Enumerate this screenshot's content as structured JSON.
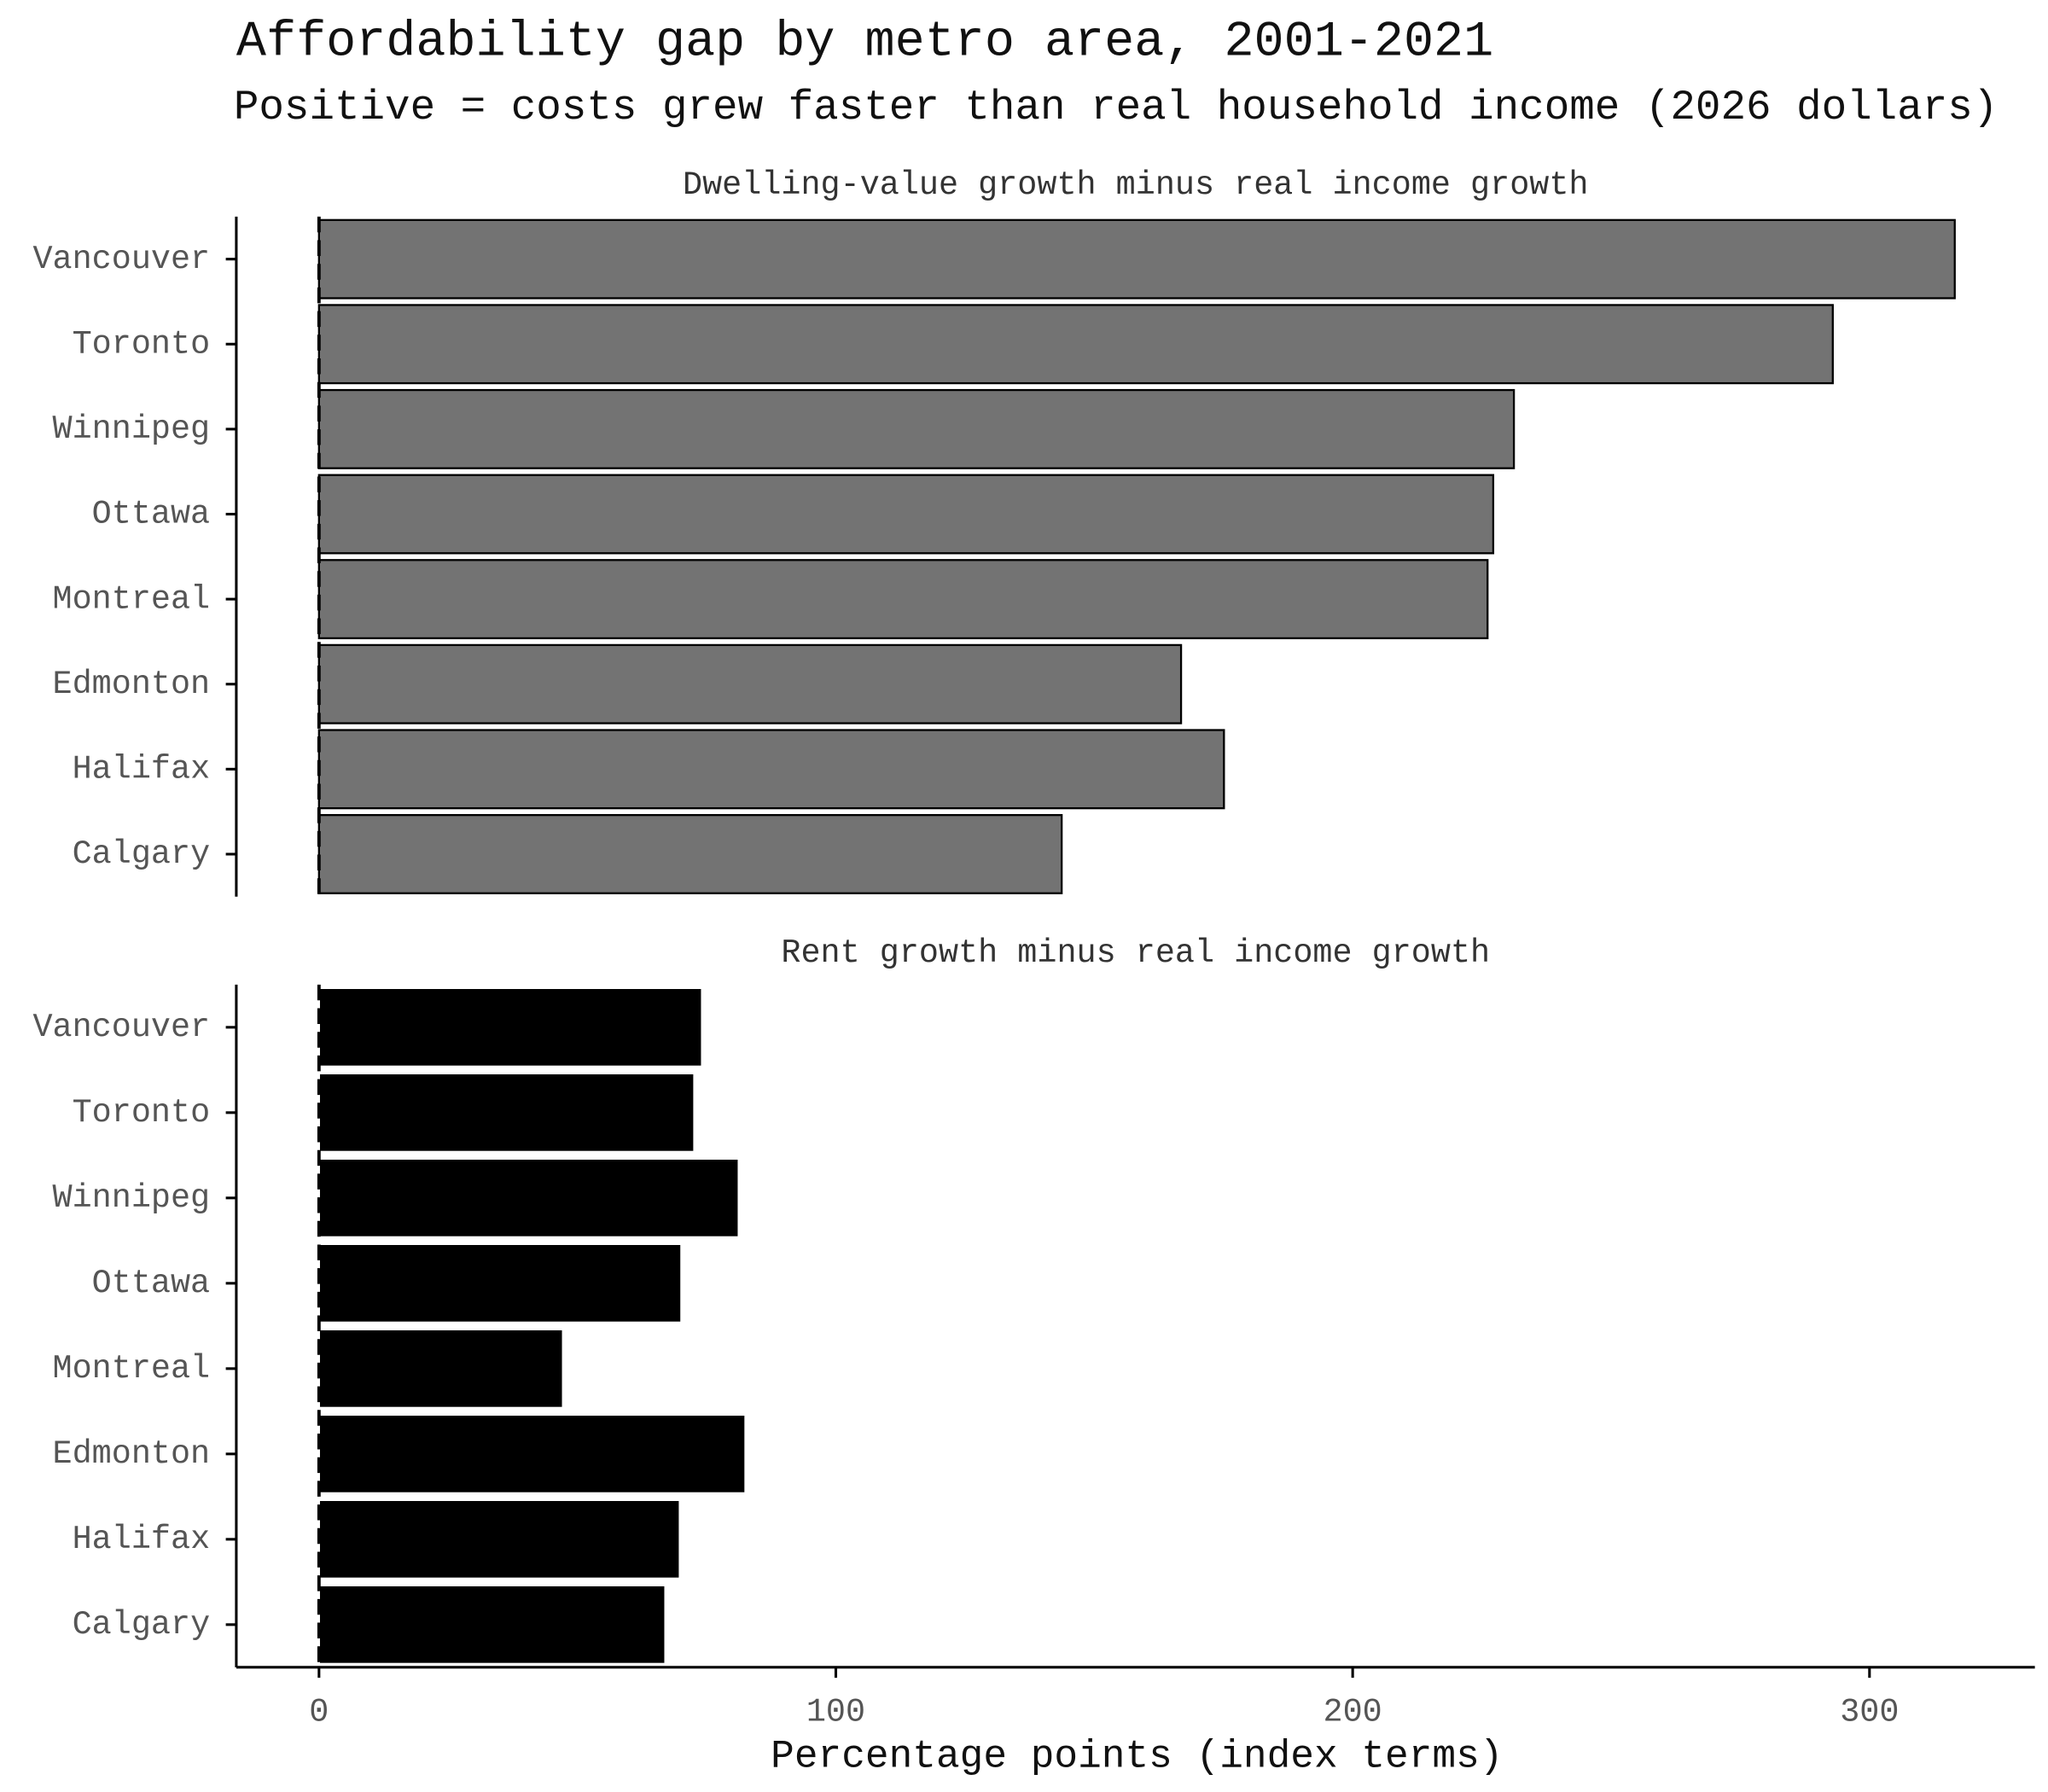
{
  "title": "Affordability gap by metro area, 2001-2021",
  "subtitle": "Positive = costs grew faster than real household income (2026 dollars)",
  "xlabel": "Percentage points (index terms)",
  "chart_data": [
    {
      "type": "barh",
      "title": "Dwelling-value growth minus real income growth",
      "categories": [
        "Vancouver",
        "Toronto",
        "Winnipeg",
        "Ottawa",
        "Montreal",
        "Edmonton",
        "Halifax",
        "Calgary"
      ],
      "values": [
        316.5,
        292.9,
        231.2,
        227.2,
        226.1,
        166.8,
        175.1,
        143.7
      ],
      "color": "#737373",
      "edgecolor": "#000000",
      "xlim": [
        -16,
        332
      ],
      "vline": 0
    },
    {
      "type": "barh",
      "title": "Rent growth minus real income growth",
      "categories": [
        "Vancouver",
        "Toronto",
        "Winnipeg",
        "Ottawa",
        "Montreal",
        "Edmonton",
        "Halifax",
        "Calgary"
      ],
      "values": [
        74.1,
        72.6,
        81.2,
        70.1,
        47.2,
        82.5,
        69.8,
        67.0
      ],
      "color": "#000000",
      "edgecolor": "#ffffff",
      "xlim": [
        -16,
        332
      ],
      "xticks": [
        0,
        100,
        200,
        300
      ],
      "vline": 0
    }
  ]
}
